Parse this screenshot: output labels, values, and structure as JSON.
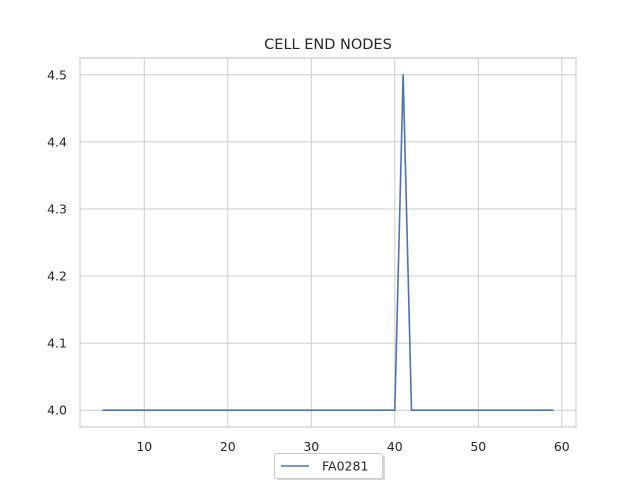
{
  "chart_data": {
    "type": "line",
    "title": "CELL END NODES",
    "xlabel": "",
    "ylabel": "",
    "xlim": [
      2.3,
      61.7
    ],
    "ylim": [
      3.975,
      4.525
    ],
    "xticks": [
      10,
      20,
      30,
      40,
      50,
      60
    ],
    "yticks": [
      4.0,
      4.1,
      4.2,
      4.3,
      4.4,
      4.5
    ],
    "ytick_labels": [
      "4.0",
      "4.1",
      "4.2",
      "4.3",
      "4.4",
      "4.5"
    ],
    "grid": true,
    "legend_position": "bottom-center",
    "series": [
      {
        "name": "FA0281",
        "color": "#4c72b0",
        "x": [
          5,
          40,
          41,
          42,
          59
        ],
        "y": [
          4.0,
          4.0,
          4.5,
          4.0,
          4.0
        ]
      }
    ]
  }
}
